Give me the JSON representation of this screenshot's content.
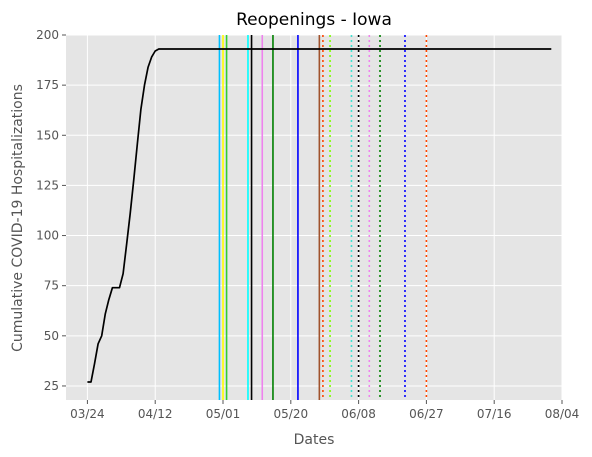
{
  "chart_data": {
    "type": "line",
    "title": "Reopenings - Iowa",
    "xlabel": "Dates",
    "ylabel": "Cumulative COVID-19 Hospitalizations",
    "x_ticks": [
      "03/24",
      "04/12",
      "05/01",
      "05/20",
      "06/08",
      "06/27",
      "07/16",
      "08/04"
    ],
    "x_tick_days": [
      0,
      19,
      38,
      57,
      76,
      95,
      114,
      133
    ],
    "y_ticks": [
      25,
      50,
      75,
      100,
      125,
      150,
      175,
      200
    ],
    "xlim": [
      "03/18",
      "08/04"
    ],
    "ylim": [
      18,
      200
    ],
    "grid": true,
    "background": "#e5e5e5",
    "series": [
      {
        "name": "",
        "color": "#000000",
        "x": [
          "03/24",
          "03/25",
          "03/26",
          "03/27",
          "03/28",
          "03/29",
          "03/30",
          "03/31",
          "04/01",
          "04/02",
          "04/03",
          "04/04",
          "04/05",
          "04/06",
          "04/07",
          "04/08",
          "04/09",
          "04/10",
          "04/11",
          "04/12",
          "04/13",
          "04/14",
          "08/01"
        ],
        "y": [
          27,
          27,
          36,
          46,
          50,
          61,
          68,
          74,
          74,
          74,
          81,
          96,
          111,
          128,
          146,
          163,
          175,
          184,
          189,
          192,
          193,
          193,
          193
        ]
      }
    ],
    "vlines": [
      {
        "x": "04/30",
        "color": "#00bfff",
        "style": "solid"
      },
      {
        "x": "05/01",
        "color": "#ffff00",
        "style": "solid"
      },
      {
        "x": "05/02",
        "color": "#32cd32",
        "style": "solid"
      },
      {
        "x": "05/08",
        "color": "#00ffff",
        "style": "solid"
      },
      {
        "x": "05/09",
        "color": "#000000",
        "style": "solid"
      },
      {
        "x": "05/12",
        "color": "#ee82ee",
        "style": "solid"
      },
      {
        "x": "05/15",
        "color": "#008000",
        "style": "solid"
      },
      {
        "x": "05/22",
        "color": "#0000ff",
        "style": "solid"
      },
      {
        "x": "05/28",
        "color": "#a0522d",
        "style": "solid"
      },
      {
        "x": "05/29",
        "color": "#ff4500",
        "style": "dotted"
      },
      {
        "x": "05/31",
        "color": "#7fff00",
        "style": "dotted"
      },
      {
        "x": "06/06",
        "color": "#40e0d0",
        "style": "dotted"
      },
      {
        "x": "06/08",
        "color": "#000000",
        "style": "dotted"
      },
      {
        "x": "06/11",
        "color": "#ee82ee",
        "style": "dotted"
      },
      {
        "x": "06/14",
        "color": "#008000",
        "style": "dotted"
      },
      {
        "x": "06/21",
        "color": "#0000ff",
        "style": "dotted"
      },
      {
        "x": "06/27",
        "color": "#ff4500",
        "style": "dotted"
      }
    ]
  }
}
